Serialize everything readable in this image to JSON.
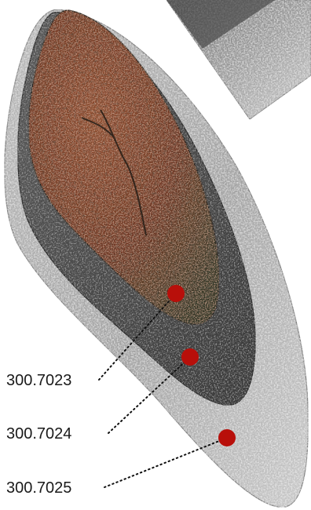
{
  "figure": {
    "samples": [
      {
        "id": "300.7023",
        "layer": "inner"
      },
      {
        "id": "300.7024",
        "layer": "middle"
      },
      {
        "id": "300.7025",
        "layer": "outer"
      }
    ],
    "colors": {
      "marker": "#b80f0a",
      "core": "#7a3a22",
      "middle_band": "#4a4a4a",
      "outer_band": "#a8a8a8",
      "inset": "#9a9a9a",
      "leader": "#111111"
    }
  }
}
